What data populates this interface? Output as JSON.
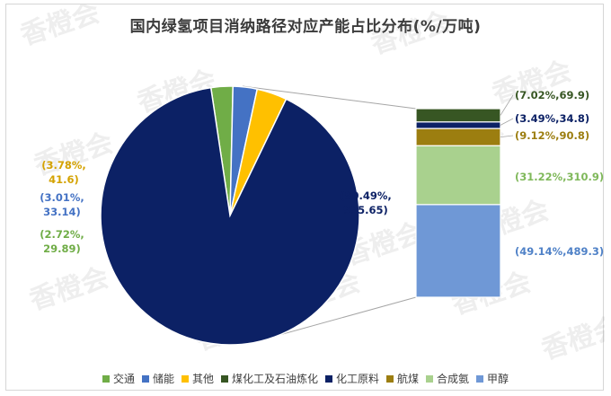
{
  "title": "国内绿氢项目消纳路径对应产能占比分布(%/万吨)",
  "colors": {
    "交通": "#70ad47",
    "储能": "#4472c4",
    "其他": "#ffc000",
    "煤化工及石油炼化": "#375623",
    "化工原料": "#0c2165",
    "航煤": "#9c7e10",
    "合成氨": "#a9d18e",
    "甲醇": "#6f98d6"
  },
  "watermark": "香橙会",
  "legend": [
    "交通",
    "储能",
    "其他",
    "煤化工及石油炼化",
    "化工原料",
    "航煤",
    "合成氨",
    "甲醇"
  ],
  "chart_data": [
    {
      "type": "pie",
      "title": "国内绿氢项目消纳路径对应产能占比分布(%/万吨)",
      "slices": [
        {
          "name": "交通",
          "percent": 2.72,
          "value": 29.89,
          "label": "(2.72%,\n29.89)"
        },
        {
          "name": "储能",
          "percent": 3.01,
          "value": 33.14,
          "label": "(3.01%,\n33.14)"
        },
        {
          "name": "其他",
          "percent": 3.78,
          "value": 41.6,
          "label": "(3.78%,\n41.6)"
        },
        {
          "name": "化工原料",
          "percent": 90.49,
          "value": 995.65,
          "label": "(90.49%,\n995.65)"
        }
      ]
    },
    {
      "type": "bar",
      "stacked": true,
      "breakdown_of": "化工原料",
      "segments": [
        {
          "name": "甲醇",
          "percent": 49.14,
          "value": 489.3,
          "label": "(49.14%,489.3)"
        },
        {
          "name": "合成氨",
          "percent": 31.22,
          "value": 310.9,
          "label": "(31.22%,310.9)"
        },
        {
          "name": "航煤",
          "percent": 9.12,
          "value": 90.8,
          "label": "(9.12%,90.8)"
        },
        {
          "name": "化工原料",
          "percent": 3.49,
          "value": 34.8,
          "label": "(3.49%,34.8)"
        },
        {
          "name": "煤化工及石油炼化",
          "percent": 7.02,
          "value": 69.9,
          "label": "(7.02%,69.9)"
        }
      ]
    }
  ]
}
